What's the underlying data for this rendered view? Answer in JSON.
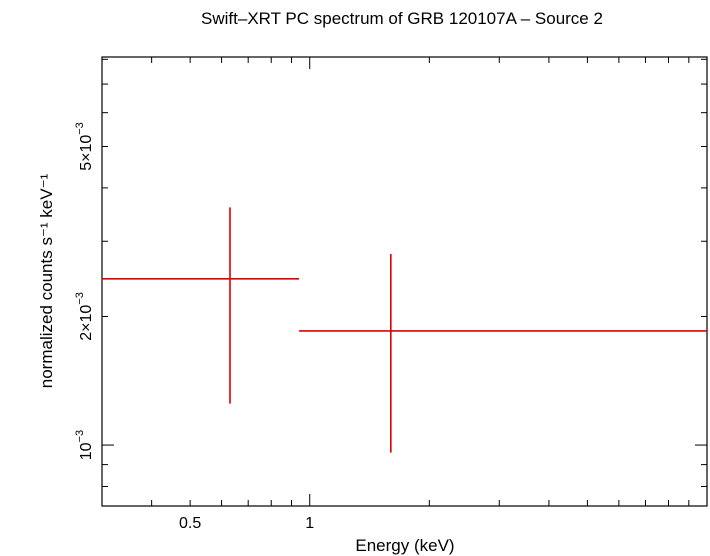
{
  "chart_data": {
    "type": "scatter",
    "title": "Swift–XRT PC spectrum of GRB 120107A – Source 2",
    "xlabel": "Energy (keV)",
    "ylabel": "normalized counts s⁻¹ keV⁻¹",
    "x_scale": "log",
    "y_scale": "log",
    "xlim": [
      0.3,
      10
    ],
    "ylim": [
      0.00072,
      0.0081
    ],
    "x_ticks": [
      {
        "value": 0.5,
        "label": "0.5"
      },
      {
        "value": 1,
        "label": "1"
      }
    ],
    "y_ticks": [
      {
        "value": 0.001,
        "base": "10",
        "exp": "−3"
      },
      {
        "value": 0.002,
        "base": "2×10",
        "exp": "−3"
      },
      {
        "value": 0.005,
        "base": "5×10",
        "exp": "−3"
      }
    ],
    "series": [
      {
        "color": "#dd0000",
        "points": [
          {
            "x": 0.63,
            "x_lo": 0.3,
            "x_hi": 0.94,
            "y": 0.00245,
            "y_lo": 0.00125,
            "y_hi": 0.0036
          },
          {
            "x": 1.6,
            "x_lo": 0.94,
            "x_hi": 10,
            "y": 0.00185,
            "y_lo": 0.00096,
            "y_hi": 0.0028
          }
        ]
      }
    ],
    "grid": false,
    "legend": "none"
  }
}
